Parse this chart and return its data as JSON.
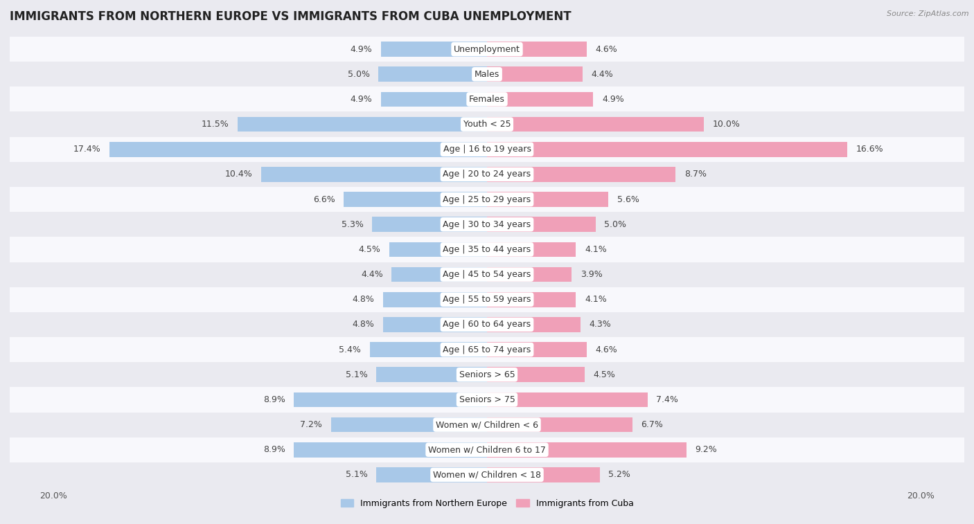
{
  "title": "IMMIGRANTS FROM NORTHERN EUROPE VS IMMIGRANTS FROM CUBA UNEMPLOYMENT",
  "source": "Source: ZipAtlas.com",
  "categories": [
    "Unemployment",
    "Males",
    "Females",
    "Youth < 25",
    "Age | 16 to 19 years",
    "Age | 20 to 24 years",
    "Age | 25 to 29 years",
    "Age | 30 to 34 years",
    "Age | 35 to 44 years",
    "Age | 45 to 54 years",
    "Age | 55 to 59 years",
    "Age | 60 to 64 years",
    "Age | 65 to 74 years",
    "Seniors > 65",
    "Seniors > 75",
    "Women w/ Children < 6",
    "Women w/ Children 6 to 17",
    "Women w/ Children < 18"
  ],
  "left_values": [
    4.9,
    5.0,
    4.9,
    11.5,
    17.4,
    10.4,
    6.6,
    5.3,
    4.5,
    4.4,
    4.8,
    4.8,
    5.4,
    5.1,
    8.9,
    7.2,
    8.9,
    5.1
  ],
  "right_values": [
    4.6,
    4.4,
    4.9,
    10.0,
    16.6,
    8.7,
    5.6,
    5.0,
    4.1,
    3.9,
    4.1,
    4.3,
    4.6,
    4.5,
    7.4,
    6.7,
    9.2,
    5.2
  ],
  "left_color": "#a8c8e8",
  "right_color": "#f0a0b8",
  "left_label": "Immigrants from Northern Europe",
  "right_label": "Immigrants from Cuba",
  "axis_limit": 20.0,
  "background_color": "#eaeaf0",
  "row_bg_color": "#f8f8fc",
  "row_alt_color": "#eaeaf0",
  "title_fontsize": 12,
  "label_fontsize": 9,
  "value_fontsize": 9,
  "bar_height": 0.6
}
